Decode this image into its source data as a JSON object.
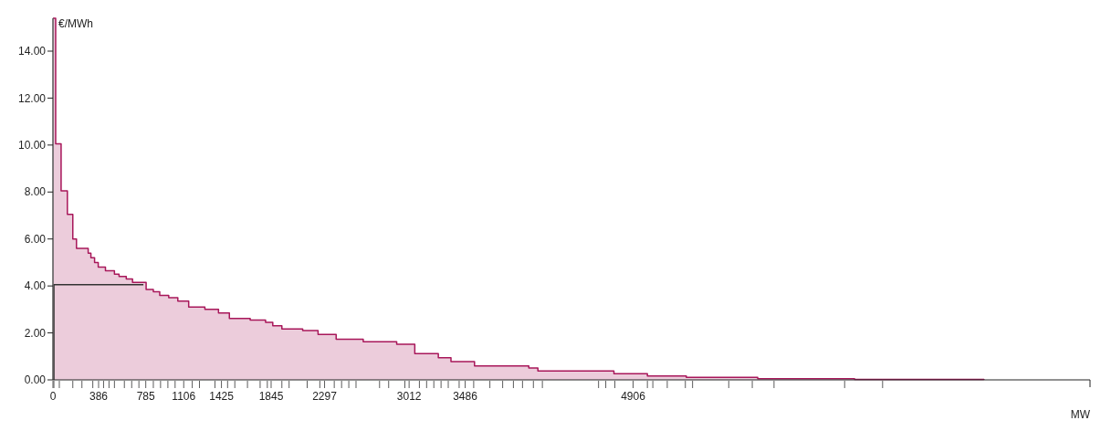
{
  "chart_data": {
    "type": "area",
    "xlabel": "MW",
    "ylabel": "€/MWh",
    "xlim": [
      0,
      8770
    ],
    "ylim": [
      0,
      15.4
    ],
    "xticks": [
      0,
      386,
      785,
      1106,
      1425,
      1845,
      2297,
      3012,
      3486,
      4906,
      {
        "value": 8,
        "label": null
      },
      {
        "value": 54,
        "label": null
      },
      {
        "value": 168,
        "label": null
      },
      {
        "value": 245,
        "label": null
      },
      {
        "value": 337,
        "label": null
      },
      {
        "value": 428,
        "label": null
      },
      {
        "value": 474,
        "label": null
      },
      {
        "value": 520,
        "label": null
      },
      {
        "value": 604,
        "label": null
      },
      {
        "value": 666,
        "label": null
      },
      {
        "value": 727,
        "label": null
      },
      {
        "value": 849,
        "label": null
      },
      {
        "value": 910,
        "label": null
      },
      {
        "value": 972,
        "label": null
      },
      {
        "value": 1033,
        "label": null
      },
      {
        "value": 1178,
        "label": null
      },
      {
        "value": 1239,
        "label": null
      },
      {
        "value": 1370,
        "label": null
      },
      {
        "value": 1477,
        "label": null
      },
      {
        "value": 1538,
        "label": null
      },
      {
        "value": 1645,
        "label": null
      },
      {
        "value": 1752,
        "label": null
      },
      {
        "value": 1813,
        "label": null
      },
      {
        "value": 1936,
        "label": null
      },
      {
        "value": 1997,
        "label": null
      },
      {
        "value": 2150,
        "label": null
      },
      {
        "value": 2257,
        "label": null
      },
      {
        "value": 2379,
        "label": null
      },
      {
        "value": 2441,
        "label": null
      },
      {
        "value": 2502,
        "label": null
      },
      {
        "value": 2563,
        "label": null
      },
      {
        "value": 2762,
        "label": null
      },
      {
        "value": 2839,
        "label": null
      },
      {
        "value": 2976,
        "label": null
      },
      {
        "value": 3099,
        "label": null
      },
      {
        "value": 3160,
        "label": null
      },
      {
        "value": 3221,
        "label": null
      },
      {
        "value": 3282,
        "label": null
      },
      {
        "value": 3343,
        "label": null
      },
      {
        "value": 3435,
        "label": null
      },
      {
        "value": 3558,
        "label": null
      },
      {
        "value": 3695,
        "label": null
      },
      {
        "value": 3803,
        "label": null
      },
      {
        "value": 3894,
        "label": null
      },
      {
        "value": 3971,
        "label": null
      },
      {
        "value": 4063,
        "label": null
      },
      {
        "value": 4139,
        "label": null
      },
      {
        "value": 4614,
        "label": null
      },
      {
        "value": 4675,
        "label": null
      },
      {
        "value": 4752,
        "label": null
      },
      {
        "value": 5027,
        "label": null
      },
      {
        "value": 5073,
        "label": null
      },
      {
        "value": 5195,
        "label": null
      },
      {
        "value": 5348,
        "label": null
      },
      {
        "value": 5409,
        "label": null
      },
      {
        "value": 5715,
        "label": null
      },
      {
        "value": 5914,
        "label": null
      },
      {
        "value": 6098,
        "label": null
      },
      {
        "value": 6695,
        "label": null
      },
      {
        "value": 7016,
        "label": null
      }
    ],
    "yticks": [
      {
        "value": 0,
        "label": "0.00"
      },
      {
        "value": 2,
        "label": "2.00"
      },
      {
        "value": 4,
        "label": "4.00"
      },
      {
        "value": 6,
        "label": "6.00"
      },
      {
        "value": 8,
        "label": "8.00"
      },
      {
        "value": 10,
        "label": "10.00"
      },
      {
        "value": 12,
        "label": "12.00"
      },
      {
        "value": 14,
        "label": "14.00"
      }
    ],
    "grid": false,
    "series": [
      {
        "color": "#a8175a",
        "x": [
          0,
          23,
          69,
          122,
          168,
          199,
          298,
          321,
          352,
          383,
          444,
          520,
          559,
          620,
          673,
          788,
          849,
          903,
          979,
          1056,
          1148,
          1285,
          1400,
          1492,
          1668,
          1798,
          1859,
          1936,
          2112,
          2242,
          2395,
          2624,
          2907,
          3060,
          3259,
          3366,
          3565,
          4024,
          4101,
          4744,
          5027,
          5356,
          5960,
          6779,
          7873
        ],
        "values": [
          15.4,
          10.05,
          8.05,
          7.05,
          6.0,
          5.6,
          5.4,
          5.2,
          5.0,
          4.8,
          4.65,
          4.5,
          4.4,
          4.3,
          4.15,
          3.85,
          3.75,
          3.6,
          3.5,
          3.35,
          3.1,
          3.0,
          2.85,
          2.62,
          2.55,
          2.45,
          2.3,
          2.17,
          2.1,
          1.93,
          1.73,
          1.62,
          1.52,
          1.12,
          0.94,
          0.78,
          0.59,
          0.51,
          0.38,
          0.26,
          0.17,
          0.11,
          0.05,
          0.02,
          0
        ]
      },
      {
        "type": "line",
        "color": "#333333",
        "x": [
          8,
          8,
          765
        ],
        "values": [
          0,
          4.05,
          4.05
        ]
      }
    ]
  }
}
